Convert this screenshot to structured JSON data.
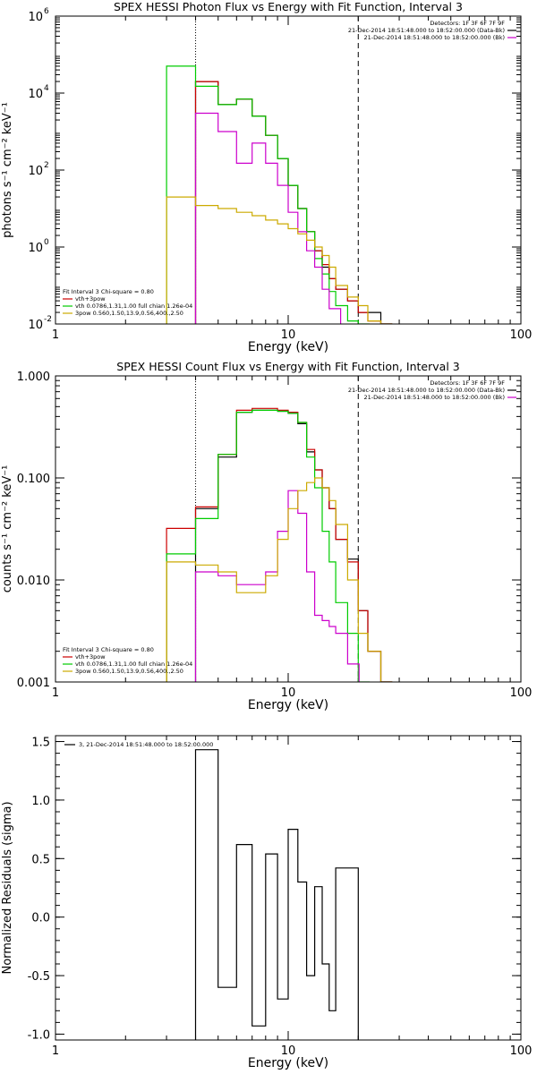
{
  "chart_data": [
    {
      "type": "line",
      "title": "SPEX HESSI Photon Flux vs Energy with Fit Function, Interval 3",
      "xlabel": "Energy (keV)",
      "ylabel": "photons s⁻¹ cm⁻² keV⁻¹",
      "xscale": "log",
      "yscale": "log",
      "xlim": [
        1,
        100
      ],
      "ylim": [
        0.01,
        1000000
      ],
      "x_ticks": [
        {
          "v": 1,
          "label": "1"
        },
        {
          "v": 10,
          "label": "10"
        },
        {
          "v": 100,
          "label": "100"
        }
      ],
      "y_ticks": [
        {
          "v": 0.01,
          "base": "10",
          "exp": "-2"
        },
        {
          "v": 1,
          "base": "10",
          "exp": "0"
        },
        {
          "v": 100,
          "base": "10",
          "exp": "2"
        },
        {
          "v": 10000,
          "base": "10",
          "exp": "4"
        },
        {
          "v": 1000000,
          "base": "10",
          "exp": "6"
        }
      ],
      "vlines": [
        {
          "x": 4,
          "style": "dotted"
        },
        {
          "x": 20,
          "style": "dashed"
        }
      ],
      "header_lines": [
        "Detectors: 1F 3F 6F 7F 9F",
        "21-Dec-2014 18:51:48.000 to 18:52:00.000 (Data-Bk)",
        "21-Dec-2014 18:51:48.000 to 18:52:00.000 (Bk)"
      ],
      "header_colors": [
        "",
        "#000000",
        "#cc00cc"
      ],
      "legend_lines": [
        {
          "text": "Fit Interval 3   Chi-square = 0.80",
          "color": ""
        },
        {
          "text": "vth+3pow",
          "color": "#cc0000"
        },
        {
          "text": "vth 0.0786,1.31,1.00  full chian 1.26e-04",
          "color": "#00cc00"
        },
        {
          "text": "3pow 0.560,1.50,13.9,0.56,400.,2.50",
          "color": "#ccaa00"
        }
      ],
      "legend_placement": "bottom-left",
      "series": [
        {
          "color": "#000000",
          "points": [
            [
              4,
              20000
            ],
            [
              5,
              5000
            ],
            [
              6,
              7000
            ],
            [
              7,
              2500
            ],
            [
              8,
              800
            ],
            [
              9,
              200
            ],
            [
              10,
              40
            ],
            [
              11,
              10
            ],
            [
              12,
              2.5
            ],
            [
              13,
              0.8
            ],
            [
              14,
              0.3
            ],
            [
              15,
              0.15
            ],
            [
              16,
              0.08
            ],
            [
              18,
              0.04
            ],
            [
              20,
              0.02
            ],
            [
              22,
              0.02
            ],
            [
              25,
              0.01
            ]
          ]
        },
        {
          "color": "#cc0000",
          "points": [
            [
              4,
              20000
            ],
            [
              5,
              5000
            ],
            [
              6,
              7000
            ],
            [
              7,
              2500
            ],
            [
              8,
              800
            ],
            [
              9,
              200
            ],
            [
              10,
              40
            ],
            [
              11,
              10
            ],
            [
              12,
              2.5
            ],
            [
              13,
              0.8
            ],
            [
              14,
              0.35
            ],
            [
              15,
              0.15
            ],
            [
              16,
              0.08
            ],
            [
              18,
              0.04
            ],
            [
              20,
              0.02
            ],
            [
              22,
              0.012
            ],
            [
              25,
              0.01
            ]
          ]
        },
        {
          "color": "#00cc00",
          "points": [
            [
              3,
              50000
            ],
            [
              4,
              15000
            ],
            [
              5,
              5000
            ],
            [
              6,
              7000
            ],
            [
              7,
              2500
            ],
            [
              8,
              800
            ],
            [
              9,
              200
            ],
            [
              10,
              40
            ],
            [
              11,
              10
            ],
            [
              12,
              2.5
            ],
            [
              13,
              0.5
            ],
            [
              14,
              0.2
            ],
            [
              15,
              0.07
            ],
            [
              16,
              0.03
            ],
            [
              18,
              0.012
            ],
            [
              20,
              0.01
            ]
          ]
        },
        {
          "color": "#cc00cc",
          "points": [
            [
              4,
              3000
            ],
            [
              5,
              1000
            ],
            [
              6,
              150
            ],
            [
              7,
              500
            ],
            [
              8,
              150
            ],
            [
              9,
              40
            ],
            [
              10,
              8
            ],
            [
              11,
              2.5
            ],
            [
              12,
              0.8
            ],
            [
              13,
              0.3
            ],
            [
              14,
              0.08
            ],
            [
              15,
              0.025
            ]
          ]
        },
        {
          "color": "#ccaa00",
          "points": [
            [
              3,
              20
            ],
            [
              4,
              12
            ],
            [
              5,
              10
            ],
            [
              6,
              8
            ],
            [
              7,
              6.5
            ],
            [
              8,
              5
            ],
            [
              9,
              4
            ],
            [
              10,
              3
            ],
            [
              11,
              2.2
            ],
            [
              12,
              1.5
            ],
            [
              13,
              1
            ],
            [
              14,
              0.6
            ],
            [
              15,
              0.3
            ],
            [
              16,
              0.1
            ],
            [
              18,
              0.05
            ],
            [
              20,
              0.03
            ],
            [
              22,
              0.012
            ],
            [
              25,
              0.01
            ]
          ]
        }
      ]
    },
    {
      "type": "line",
      "title": "SPEX HESSI Count Flux vs Energy with Fit Function, Interval 3",
      "xlabel": "Energy (keV)",
      "ylabel": "counts s⁻¹ cm⁻² keV⁻¹",
      "xscale": "log",
      "yscale": "log",
      "xlim": [
        1,
        100
      ],
      "ylim": [
        0.001,
        1
      ],
      "x_ticks": [
        {
          "v": 1,
          "label": "1"
        },
        {
          "v": 10,
          "label": "10"
        },
        {
          "v": 100,
          "label": "100"
        }
      ],
      "y_ticks": [
        {
          "v": 0.001,
          "label": "0.001"
        },
        {
          "v": 0.01,
          "label": "0.010"
        },
        {
          "v": 0.1,
          "label": "0.100"
        },
        {
          "v": 1,
          "label": "1.000"
        }
      ],
      "vlines": [
        {
          "x": 4,
          "style": "dotted"
        },
        {
          "x": 20,
          "style": "dashed"
        }
      ],
      "header_lines": [
        "Detectors: 1F 3F 6F 7F 9F",
        "21-Dec-2014 18:51:48.000 to 18:52:00.000 (Data-Bk)",
        "21-Dec-2014 18:51:48.000 to 18:52:00.000 (Bk)"
      ],
      "header_colors": [
        "",
        "#000000",
        "#cc00cc"
      ],
      "legend_lines": [
        {
          "text": "Fit Interval 3   Chi-square = 0.80",
          "color": ""
        },
        {
          "text": "vth+3pow",
          "color": "#cc0000"
        },
        {
          "text": "vth 0.0786,1.31,1.00  full chian 1.26e-04",
          "color": "#00cc00"
        },
        {
          "text": "3pow 0.560,1.50,13.9,0.56,400.,2.50",
          "color": "#ccaa00"
        }
      ],
      "legend_placement": "bottom-left",
      "series": [
        {
          "color": "#000000",
          "points": [
            [
              4,
              0.05
            ],
            [
              5,
              0.16
            ],
            [
              6,
              0.44
            ],
            [
              7,
              0.46
            ],
            [
              8,
              0.46
            ],
            [
              9,
              0.45
            ],
            [
              10,
              0.43
            ],
            [
              11,
              0.34
            ],
            [
              12,
              0.18
            ],
            [
              13,
              0.12
            ],
            [
              14,
              0.08
            ],
            [
              15,
              0.05
            ],
            [
              16,
              0.025
            ],
            [
              18,
              0.016
            ],
            [
              20,
              0.005
            ],
            [
              22,
              0.002
            ],
            [
              25,
              0.001
            ]
          ]
        },
        {
          "color": "#cc0000",
          "points": [
            [
              3,
              0.032
            ],
            [
              4,
              0.052
            ],
            [
              5,
              0.17
            ],
            [
              6,
              0.46
            ],
            [
              7,
              0.48
            ],
            [
              8,
              0.48
            ],
            [
              9,
              0.46
            ],
            [
              10,
              0.44
            ],
            [
              11,
              0.35
            ],
            [
              12,
              0.19
            ],
            [
              13,
              0.12
            ],
            [
              14,
              0.08
            ],
            [
              15,
              0.05
            ],
            [
              16,
              0.025
            ],
            [
              18,
              0.015
            ],
            [
              20,
              0.005
            ],
            [
              22,
              0.002
            ],
            [
              25,
              0.001
            ]
          ]
        },
        {
          "color": "#00cc00",
          "points": [
            [
              3,
              0.018
            ],
            [
              4,
              0.04
            ],
            [
              5,
              0.17
            ],
            [
              6,
              0.44
            ],
            [
              7,
              0.46
            ],
            [
              8,
              0.46
            ],
            [
              9,
              0.45
            ],
            [
              10,
              0.43
            ],
            [
              11,
              0.35
            ],
            [
              12,
              0.16
            ],
            [
              13,
              0.08
            ],
            [
              14,
              0.03
            ],
            [
              15,
              0.015
            ],
            [
              16,
              0.006
            ],
            [
              18,
              0.003
            ],
            [
              20,
              0.001
            ]
          ]
        },
        {
          "color": "#cc00cc",
          "points": [
            [
              4,
              0.012
            ],
            [
              5,
              0.011
            ],
            [
              6,
              0.009
            ],
            [
              7,
              0.009
            ],
            [
              8,
              0.012
            ],
            [
              9,
              0.03
            ],
            [
              10,
              0.075
            ],
            [
              11,
              0.045
            ],
            [
              12,
              0.012
            ],
            [
              13,
              0.0045
            ],
            [
              14,
              0.004
            ],
            [
              15,
              0.0035
            ],
            [
              16,
              0.003
            ],
            [
              18,
              0.0015
            ]
          ]
        },
        {
          "color": "#ccaa00",
          "points": [
            [
              3,
              0.015
            ],
            [
              4,
              0.014
            ],
            [
              5,
              0.012
            ],
            [
              6,
              0.0075
            ],
            [
              7,
              0.0075
            ],
            [
              8,
              0.011
            ],
            [
              9,
              0.025
            ],
            [
              10,
              0.05
            ],
            [
              11,
              0.075
            ],
            [
              12,
              0.09
            ],
            [
              13,
              0.1
            ],
            [
              14,
              0.08
            ],
            [
              15,
              0.06
            ],
            [
              16,
              0.035
            ],
            [
              18,
              0.01
            ],
            [
              20,
              0.003
            ],
            [
              22,
              0.002
            ],
            [
              25,
              0.001
            ]
          ]
        }
      ]
    },
    {
      "type": "line",
      "title": "",
      "xlabel": "Energy (keV)",
      "ylabel": "Normalized Residuals (sigma)",
      "xscale": "log",
      "yscale": "linear",
      "xlim": [
        1,
        100
      ],
      "ylim": [
        -1.05,
        1.55
      ],
      "x_ticks": [
        {
          "v": 1,
          "label": "1"
        },
        {
          "v": 10,
          "label": "10"
        },
        {
          "v": 100,
          "label": "100"
        }
      ],
      "y_ticks": [
        {
          "v": -1,
          "label": "-1.0"
        },
        {
          "v": -0.5,
          "label": "-0.5"
        },
        {
          "v": 0,
          "label": "0.0"
        },
        {
          "v": 0.5,
          "label": "0.5"
        },
        {
          "v": 1,
          "label": "1.0"
        },
        {
          "v": 1.5,
          "label": "1.5"
        }
      ],
      "legend_lines": [
        {
          "text": "3, 21-Dec-2014 18:51:48.000 to 18:52:00.000",
          "color": "#000000"
        }
      ],
      "legend_placement": "top-left",
      "series": [
        {
          "color": "#000000",
          "points": [
            [
              4,
              1.43
            ],
            [
              5,
              -0.6
            ],
            [
              6,
              0.62
            ],
            [
              7,
              -0.93
            ],
            [
              8,
              0.54
            ],
            [
              9,
              -0.7
            ],
            [
              10,
              0.75
            ],
            [
              11,
              0.3
            ],
            [
              12,
              -0.5
            ],
            [
              13,
              0.26
            ],
            [
              14,
              -0.4
            ],
            [
              15,
              -0.8
            ],
            [
              16,
              0.42
            ]
          ]
        }
      ]
    }
  ]
}
